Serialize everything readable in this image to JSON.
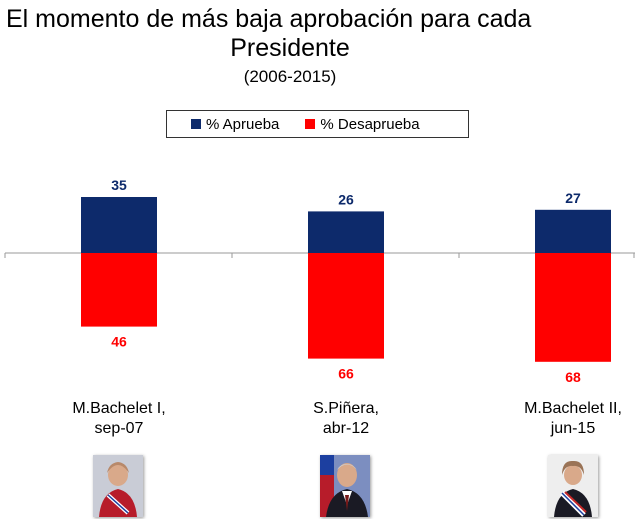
{
  "chart_data": {
    "type": "bar",
    "title_line1": "El momento de más baja aprobación para cada",
    "title_line2": "Presidente",
    "subtitle": "(2006-2015)",
    "categories": [
      {
        "line1": "M.Bachelet I,",
        "line2": "sep-07"
      },
      {
        "line1": "S.Piñera,",
        "line2": "abr-12"
      },
      {
        "line1": "M.Bachelet II,",
        "line2": "jun-15"
      }
    ],
    "series": [
      {
        "name": "% Aprueba",
        "color": "#0d2a6b",
        "values": [
          35,
          26,
          27
        ]
      },
      {
        "name": "% Desaprueba",
        "color": "#ff0000",
        "values": [
          46,
          66,
          68
        ]
      }
    ],
    "xlabel": "",
    "ylabel": "",
    "legend_position": "top-center"
  }
}
